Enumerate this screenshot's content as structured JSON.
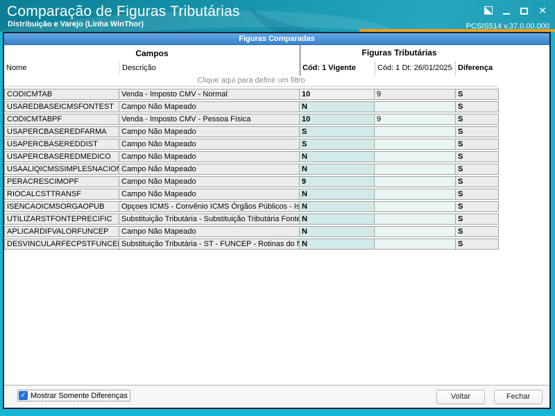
{
  "window": {
    "title": "Comparação de Figuras Tributárias",
    "subtitle": "Distribuição e Varejo (Linha WinThor)",
    "version": "PCSIS514 v.37.0.00.000"
  },
  "icons": {
    "check": "✓",
    "close": "✕"
  },
  "colors": {
    "titlebar_teal": "#1795ae",
    "window_border_teal": "#17b6d4",
    "accent_orange": "#f2a11e",
    "panel_header_blue": "#4a94d9",
    "vigente_column_teal": "#d2eae9",
    "dt_column_teal": "#e9f5f3",
    "row_gray": "#ececec"
  },
  "panel": {
    "header": "Figuras Comparadas"
  },
  "grid": {
    "group_campos": "Campos",
    "group_figuras": "Figuras Tributárias",
    "col_nome": "Nome",
    "col_descricao": "Descrição",
    "col_vigente": "Cód: 1 Vigente",
    "col_dt": "Cód: 1 Dt: 26/01/2025",
    "col_diferenca": "Diferença",
    "filter_hint": "Clique aqui para definir um filtro",
    "rows": [
      {
        "nome": "CODICMTAB",
        "descricao": "Venda - Imposto CMV - Normal",
        "vigente": "10",
        "dt": "9",
        "diferenca": "S"
      },
      {
        "nome": "USAREDBASEICMSFONTEST",
        "descricao": "Campo Não Mapeado",
        "vigente": "N",
        "dt": "",
        "diferenca": "S"
      },
      {
        "nome": "CODICMTABPF",
        "descricao": "Venda - Imposto CMV - Pessoa Física",
        "vigente": "10",
        "dt": "9",
        "diferenca": "S"
      },
      {
        "nome": "USAPERCBASEREDFARMA",
        "descricao": "Campo Não Mapeado",
        "vigente": "S",
        "dt": "",
        "diferenca": "S"
      },
      {
        "nome": "USAPERCBASEREDDIST",
        "descricao": "Campo Não Mapeado",
        "vigente": "S",
        "dt": "",
        "diferenca": "S"
      },
      {
        "nome": "USAPERCBASEREDMEDICO",
        "descricao": "Campo Não Mapeado",
        "vigente": "N",
        "dt": "",
        "diferenca": "S"
      },
      {
        "nome": "USAALIQICMSSIMPLESNACIONAL",
        "descricao": "Campo Não Mapeado",
        "vigente": "N",
        "dt": "",
        "diferenca": "S"
      },
      {
        "nome": "PERACRESCIMOPF",
        "descricao": "Campo Não Mapeado",
        "vigente": "9",
        "dt": "",
        "diferenca": "S"
      },
      {
        "nome": "RIOCALCSTTRANSF",
        "descricao": "Campo Não Mapeado",
        "vigente": "N",
        "dt": "",
        "diferenca": "S"
      },
      {
        "nome": "ISENCAOICMSORGAOPUB",
        "descricao": "Opçoes ICMS - Convênio ICMS Órgãos Públicos - Isenção",
        "vigente": "N",
        "dt": "",
        "diferenca": "S"
      },
      {
        "nome": "UTILIZARSTFONTEPRECIFIC",
        "descricao": "Substituição Tributária - Substituição Tributária Fonte",
        "vigente": "N",
        "dt": "",
        "diferenca": "S"
      },
      {
        "nome": "APLICARDIFVALORFUNCEP",
        "descricao": "Campo Não Mapeado",
        "vigente": "N",
        "dt": "",
        "diferenca": "S"
      },
      {
        "nome": "DESVINCULARFECPSTFUNCEPICMS",
        "descricao": "Substituição Tributária - ST - FUNCEP - Rotinas do N",
        "vigente": "N",
        "dt": "",
        "diferenca": "S"
      }
    ]
  },
  "footer": {
    "checkbox_label": "Mostrar Somente Diferenças",
    "checkbox_checked": true,
    "voltar": "Voltar",
    "fechar": "Fechar"
  }
}
